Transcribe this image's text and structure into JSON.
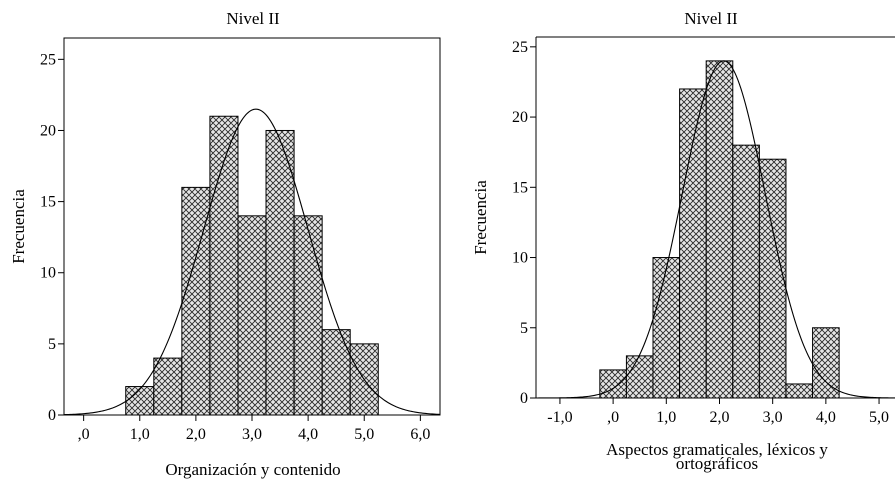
{
  "chart_data": [
    {
      "type": "bar",
      "title": "Nivel II",
      "xlabel": "Organización y contenido",
      "ylabel": "Frecuencia",
      "xlim": [
        -0.35,
        6.35
      ],
      "ylim": [
        0,
        26.5
      ],
      "xticks": [
        0,
        1,
        2,
        3,
        4,
        5,
        6
      ],
      "xtick_labels": [
        ",0",
        "1,0",
        "2,0",
        "3,0",
        "4,0",
        "5,0",
        "6,0"
      ],
      "yticks": [
        0,
        5,
        10,
        15,
        20,
        25
      ],
      "ytick_labels": [
        "0",
        "5",
        "10",
        "15",
        "20",
        "25"
      ],
      "bins": [
        {
          "x0": 0.75,
          "x1": 1.25,
          "value": 2
        },
        {
          "x0": 1.25,
          "x1": 1.75,
          "value": 4
        },
        {
          "x0": 1.75,
          "x1": 2.25,
          "value": 16
        },
        {
          "x0": 2.25,
          "x1": 2.75,
          "value": 21
        },
        {
          "x0": 2.75,
          "x1": 3.25,
          "value": 14
        },
        {
          "x0": 3.25,
          "x1": 3.75,
          "value": 20
        },
        {
          "x0": 3.75,
          "x1": 4.25,
          "value": 14
        },
        {
          "x0": 4.25,
          "x1": 4.75,
          "value": 6
        },
        {
          "x0": 4.75,
          "x1": 5.25,
          "value": 5
        }
      ],
      "normal_curve": {
        "mean": 3.07,
        "sd": 0.93,
        "peak": 21.5
      },
      "bar_fill": "crosshatch",
      "grid": false
    },
    {
      "type": "bar",
      "title": "Nivel II",
      "xlabel": "Aspectos gramaticales, léxicos y ortográficos",
      "xlabel_lines": [
        "Aspectos gramaticales, léxicos y",
        "ortográficos"
      ],
      "ylabel": "Frecuencia",
      "xlim": [
        -1.45,
        5.3
      ],
      "ylim": [
        0,
        25.7
      ],
      "xticks": [
        -1,
        0,
        1,
        2,
        3,
        4,
        5
      ],
      "xtick_labels": [
        "-1,0",
        ",0",
        "1,0",
        "2,0",
        "3,0",
        "4,0",
        "5,0"
      ],
      "yticks": [
        0,
        5,
        10,
        15,
        20,
        25
      ],
      "ytick_labels": [
        "0",
        "5",
        "10",
        "15",
        "20",
        "25"
      ],
      "bins": [
        {
          "x0": -0.25,
          "x1": 0.25,
          "value": 2
        },
        {
          "x0": 0.25,
          "x1": 0.75,
          "value": 3
        },
        {
          "x0": 0.75,
          "x1": 1.25,
          "value": 10
        },
        {
          "x0": 1.25,
          "x1": 1.75,
          "value": 22
        },
        {
          "x0": 1.75,
          "x1": 2.25,
          "value": 24
        },
        {
          "x0": 2.25,
          "x1": 2.75,
          "value": 18
        },
        {
          "x0": 2.75,
          "x1": 3.25,
          "value": 17
        },
        {
          "x0": 3.25,
          "x1": 3.75,
          "value": 1
        },
        {
          "x0": 3.75,
          "x1": 4.25,
          "value": 5
        }
      ],
      "normal_curve": {
        "mean": 2.08,
        "sd": 0.78,
        "peak": 24.0
      },
      "bar_fill": "crosshatch",
      "grid": false
    }
  ]
}
